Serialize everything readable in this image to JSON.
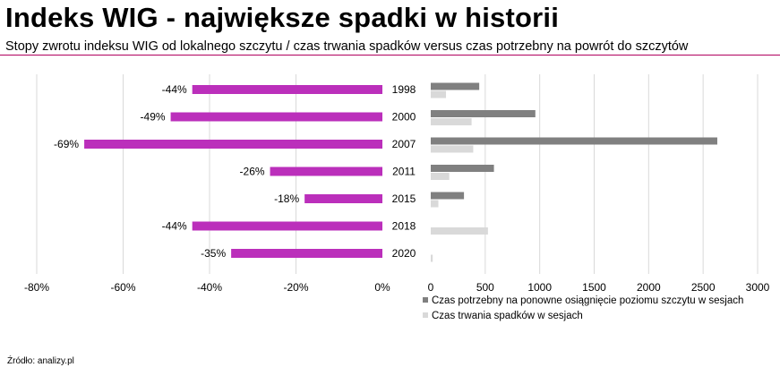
{
  "header": {
    "title": "Indeks WIG - największe spadki w historii",
    "subtitle": "Stopy zwrotu indeksu WIG od lokalnego szczytu / czas trwania spadków versus czas potrzebny na powrót do szczytów"
  },
  "footer": {
    "source": "Źródło: analizy.pl"
  },
  "colors": {
    "magenta": "#bb2fbb",
    "dark_grey": "#808080",
    "light_grey": "#d9d9d9",
    "rule": "#b0005e",
    "grid": "#d9d9d9"
  },
  "chart_data": [
    {
      "type": "bar",
      "orientation": "horizontal",
      "categories": [
        "1998",
        "2000",
        "2007",
        "2011",
        "2015",
        "2018",
        "2020"
      ],
      "values": [
        -44,
        -49,
        -69,
        -26,
        -18,
        -44,
        -35
      ],
      "value_labels": [
        "-44%",
        "-49%",
        "-69%",
        "-26%",
        "-18%",
        "-44%",
        "-35%"
      ],
      "xlim": [
        -80,
        0
      ],
      "xticks": [
        -80,
        -60,
        -40,
        -20,
        0
      ],
      "xtick_labels": [
        "-80%",
        "-60%",
        "-40%",
        "-20%",
        "0%"
      ],
      "color": "#bb2fbb",
      "grid": true
    },
    {
      "type": "bar",
      "orientation": "horizontal",
      "categories": [
        "1998",
        "2000",
        "2007",
        "2011",
        "2015",
        "2018",
        "2020"
      ],
      "series": [
        {
          "name": "Czas potrzebny na ponowne osiągnięcie poziomu szczytu w sesjach",
          "color": "#808080",
          "values": [
            445,
            960,
            2630,
            580,
            305,
            0,
            0
          ]
        },
        {
          "name": "Czas trwania spadków w sesjach",
          "color": "#d9d9d9",
          "values": [
            140,
            375,
            390,
            170,
            70,
            525,
            18
          ]
        }
      ],
      "xlim": [
        0,
        3000
      ],
      "xticks": [
        0,
        500,
        1000,
        1500,
        2000,
        2500,
        3000
      ],
      "xtick_labels": [
        "0",
        "500",
        "1000",
        "1500",
        "2000",
        "2500",
        "3000"
      ],
      "legend": "bottom",
      "grid": true
    }
  ]
}
